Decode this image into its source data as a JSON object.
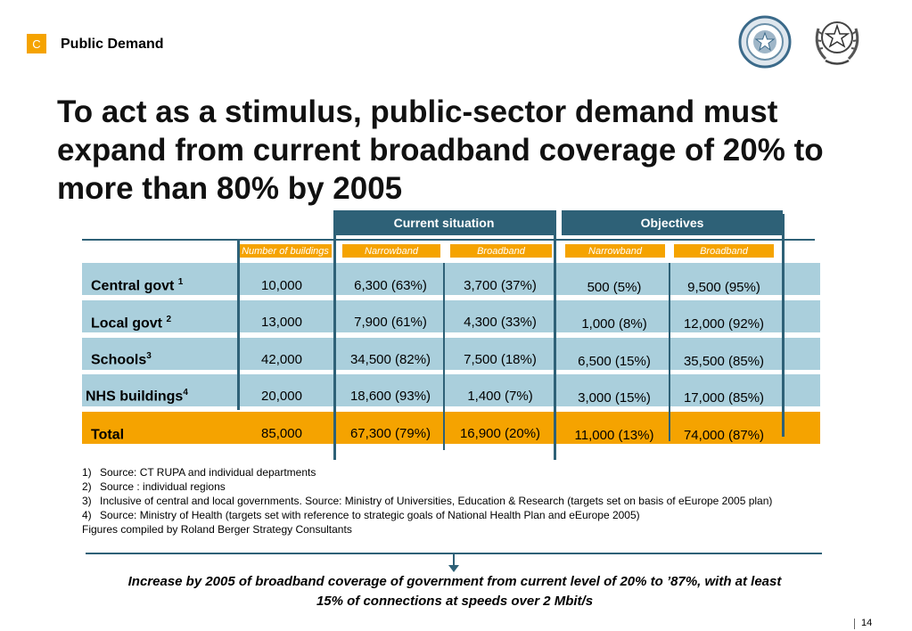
{
  "header": {
    "section_letter": "C",
    "section_title": "Public Demand"
  },
  "headline": "To act as a stimulus, public-sector demand must expand from  current broadband coverage of 20% to more than 80% by 2005",
  "table": {
    "group_headers": {
      "current": "Current situation",
      "objectives": "Objectives"
    },
    "subheaders": {
      "buildings": "Number of buildings",
      "current_narrowband": "Narrowband",
      "current_broadband": "Broadband",
      "objective_narrowband": "Narrowband",
      "objective_broadband": "Broadband"
    },
    "rows": [
      {
        "label": "Central govt ",
        "sup": "1",
        "buildings": "10,000",
        "cur_nb": "6,300 (63%)",
        "cur_bb": "3,700 (37%)",
        "obj_nb": "500 (5%)",
        "obj_bb": "9,500 (95%)"
      },
      {
        "label": "Local govt ",
        "sup": "2",
        "buildings": "13,000",
        "cur_nb": "7,900 (61%)",
        "cur_bb": "4,300 (33%)",
        "obj_nb": "1,000 (8%)",
        "obj_bb": "12,000 (92%)"
      },
      {
        "label": "Schools",
        "sup": "3",
        "buildings": "42,000",
        "cur_nb": "34,500 (82%)",
        "cur_bb": "7,500 (18%)",
        "obj_nb": "6,500 (15%)",
        "obj_bb": "35,500 (85%)"
      },
      {
        "label": "NHS buildings",
        "sup": "4",
        "buildings": "20,000",
        "cur_nb": "18,600 (93%)",
        "cur_bb": "1,400 (7%)",
        "obj_nb": "3,000 (15%)",
        "obj_bb": "17,000 (85%)"
      },
      {
        "label": "Total",
        "sup": "",
        "buildings": "85,000",
        "cur_nb": "67,300 (79%)",
        "cur_bb": "16,900 (20%)",
        "obj_nb": "11,000 (13%)",
        "obj_bb": "74,000 (87%)"
      }
    ]
  },
  "notes": [
    {
      "num": "1)",
      "text": "Source: CT RUPA and individual departments"
    },
    {
      "num": "2)",
      "text": "Source : individual regions"
    },
    {
      "num": "3)",
      "text": "Inclusive of central and local governments. Source: Ministry of Universities, Education & Research (targets set on  basis of eEurope 2005 plan)"
    },
    {
      "num": "4)",
      "text": "Source: Ministry of Health (targets set with reference to strategic goals of National Health Plan and  eEurope 2005)"
    }
  ],
  "compiled_by": "Figures compiled by Roland Berger Strategy Consultants",
  "conclusion": "Increase by  2005 of broadband coverage of government from current level of 20% to ’87%, with at least 15% of connections at speeds over 2 Mbit/s",
  "page_number": "14",
  "colors": {
    "accent": "#f5a300",
    "band": "#aacfdc",
    "header": "#2e6177"
  },
  "logos": [
    "italian-republic-emblem-icon",
    "italian-emblem-icon"
  ]
}
